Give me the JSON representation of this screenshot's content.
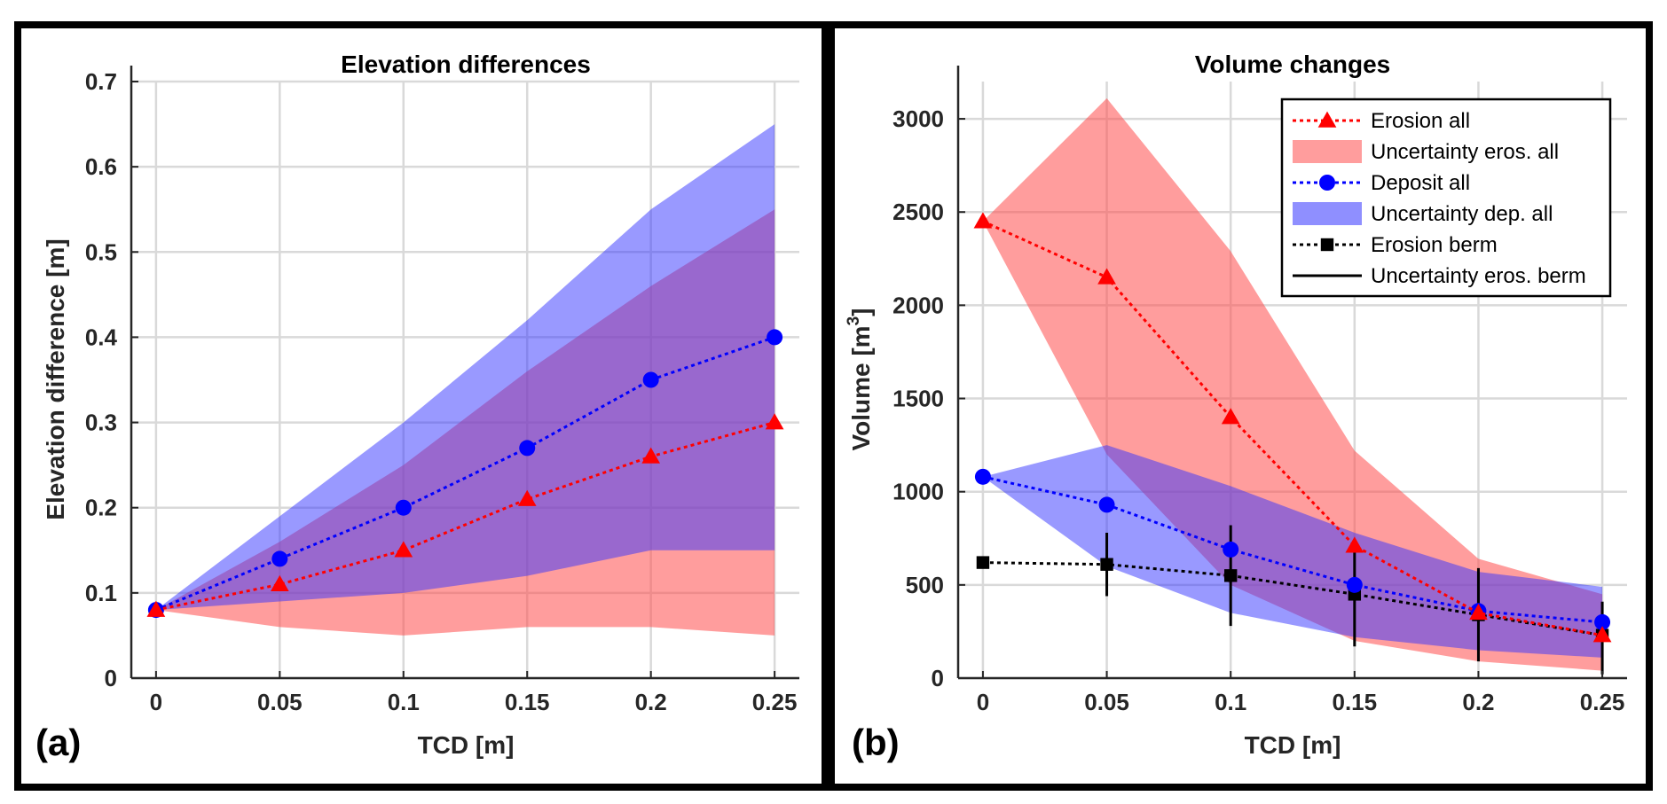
{
  "colors": {
    "red": "#ff0000",
    "blue": "#0000ff",
    "black": "#000000",
    "red_band": "#ff4d4d",
    "blue_band": "#3333ff"
  },
  "chart_data": [
    {
      "type": "line",
      "panel_label": "(a)",
      "title": "Elevation differences",
      "xlabel": "TCD [m]",
      "ylabel": "Elevation difference [m]",
      "xlim": [
        -0.01,
        0.26
      ],
      "ylim": [
        0,
        0.7
      ],
      "xticks": [
        0,
        0.05,
        0.1,
        0.15,
        0.2,
        0.25
      ],
      "xtick_labels": [
        "0",
        "0.05",
        "0.1",
        "0.15",
        "0.2",
        "0.25"
      ],
      "yticks": [
        0,
        0.1,
        0.2,
        0.3,
        0.4,
        0.5,
        0.6,
        0.7
      ],
      "ytick_labels": [
        "0",
        "0.1",
        "0.2",
        "0.3",
        "0.4",
        "0.5",
        "0.6",
        "0.7"
      ],
      "grid": true,
      "x": [
        0,
        0.05,
        0.1,
        0.15,
        0.2,
        0.25
      ],
      "bands": [
        {
          "name": "Uncertainty eros. all",
          "color": "#ff4d4d",
          "opacity": 0.55,
          "lower": [
            0.08,
            0.06,
            0.05,
            0.06,
            0.06,
            0.05
          ],
          "upper": [
            0.08,
            0.16,
            0.25,
            0.36,
            0.46,
            0.55
          ]
        },
        {
          "name": "Uncertainty dep. all",
          "color": "#3333ff",
          "opacity": 0.5,
          "lower": [
            0.08,
            0.09,
            0.1,
            0.12,
            0.15,
            0.15
          ],
          "upper": [
            0.08,
            0.19,
            0.3,
            0.42,
            0.55,
            0.65
          ]
        }
      ],
      "series": [
        {
          "name": "Erosion all",
          "color": "#ff0000",
          "marker": "triangle",
          "values": [
            0.08,
            0.11,
            0.15,
            0.21,
            0.26,
            0.3
          ]
        },
        {
          "name": "Deposit all",
          "color": "#0000ff",
          "marker": "circle",
          "values": [
            0.08,
            0.14,
            0.2,
            0.27,
            0.35,
            0.4
          ]
        }
      ]
    },
    {
      "type": "line",
      "panel_label": "(b)",
      "title": "Volume changes",
      "xlabel": "TCD [m]",
      "ylabel_main": "Volume [m",
      "ylabel_sup": "3",
      "ylabel_end": "]",
      "xlim": [
        -0.01,
        0.26
      ],
      "ylim": [
        0,
        3200
      ],
      "xticks": [
        0,
        0.05,
        0.1,
        0.15,
        0.2,
        0.25
      ],
      "xtick_labels": [
        "0",
        "0.05",
        "0.1",
        "0.15",
        "0.2",
        "0.25"
      ],
      "yticks": [
        0,
        500,
        1000,
        1500,
        2000,
        2500,
        3000
      ],
      "ytick_labels": [
        "0",
        "500",
        "1000",
        "1500",
        "2000",
        "2500",
        "3000"
      ],
      "grid": true,
      "x": [
        0,
        0.05,
        0.1,
        0.15,
        0.2,
        0.25
      ],
      "bands": [
        {
          "name": "Uncertainty eros. all",
          "color": "#ff4d4d",
          "opacity": 0.55,
          "lower": [
            2450,
            1200,
            500,
            200,
            90,
            40
          ],
          "upper": [
            2450,
            3110,
            2290,
            1220,
            640,
            450
          ]
        },
        {
          "name": "Uncertainty dep. all",
          "color": "#3333ff",
          "opacity": 0.5,
          "lower": [
            1080,
            600,
            350,
            220,
            150,
            110
          ],
          "upper": [
            1080,
            1250,
            1030,
            780,
            570,
            490
          ]
        }
      ],
      "series": [
        {
          "name": "Erosion all",
          "color": "#ff0000",
          "marker": "triangle",
          "values": [
            2450,
            2150,
            1400,
            710,
            350,
            230
          ]
        },
        {
          "name": "Deposit all",
          "color": "#0000ff",
          "marker": "circle",
          "values": [
            1080,
            930,
            690,
            500,
            360,
            300
          ]
        },
        {
          "name": "Erosion berm",
          "color": "#000000",
          "marker": "square",
          "values": [
            620,
            610,
            550,
            450,
            340,
            230
          ],
          "err_lower": [
            620,
            440,
            280,
            170,
            90,
            20
          ],
          "err_upper": [
            620,
            780,
            820,
            730,
            590,
            410
          ]
        }
      ],
      "legend": {
        "position": "top-right",
        "entries": [
          {
            "label": "Erosion all",
            "kind": "line",
            "color": "#ff0000",
            "marker": "triangle"
          },
          {
            "label": "Uncertainty eros. all",
            "kind": "patch",
            "color": "#ff4d4d"
          },
          {
            "label": "Deposit all",
            "kind": "line",
            "color": "#0000ff",
            "marker": "circle"
          },
          {
            "label": "Uncertainty dep. all",
            "kind": "patch",
            "color": "#3333ff"
          },
          {
            "label": "Erosion berm",
            "kind": "line",
            "color": "#000000",
            "marker": "square"
          },
          {
            "label": "Uncertainty eros. berm",
            "kind": "solid",
            "color": "#000000"
          }
        ]
      }
    }
  ]
}
